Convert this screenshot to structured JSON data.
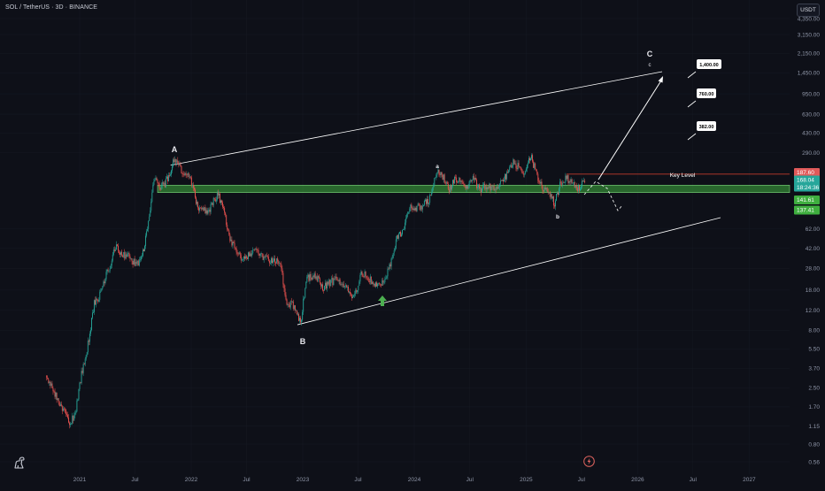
{
  "header": {
    "symbol_title": "SOL / TetherUS · 3D · BINANCE",
    "unit_button": "USDT"
  },
  "colors": {
    "background": "#0e1018",
    "up_candle": "#26a69a",
    "down_candle": "#ef5350",
    "support_zone": "#3fae3f",
    "key_level_line": "#c0392b",
    "channel_line": "#ffffff",
    "current_price_tag": "#26a69a",
    "high_tag": "#e05a5a",
    "zone_tag": "#3fae3f",
    "arrow_up": "#4caf50"
  },
  "chart_data": {
    "type": "candlestick",
    "ylabel": "USDT",
    "y_scale": "log",
    "ylim": [
      0.5,
      5300
    ],
    "y_ticks": [
      "4,350.00",
      "3,150.00",
      "2,150.00",
      "1,450.00",
      "950.00",
      "630.00",
      "430.00",
      "290.00",
      "187.60",
      "168.04",
      "141.61",
      "137.41",
      "62.00",
      "42.00",
      "28.00",
      "18.00",
      "12.00",
      "8.00",
      "5.50",
      "3.70",
      "2.50",
      "1.70",
      "1.15",
      "0.80",
      "0.56"
    ],
    "x_ticks": [
      "2021",
      "Jul",
      "2022",
      "Jul",
      "2023",
      "Jul",
      "2024",
      "Jul",
      "2025",
      "Jul",
      "2026",
      "Jul",
      "2027"
    ],
    "price_series": [
      [
        "2020-09-15",
        3.2
      ],
      [
        "2020-10-05",
        2.6
      ],
      [
        "2020-10-25",
        1.9
      ],
      [
        "2020-11-15",
        1.6
      ],
      [
        "2020-12-01",
        1.2
      ],
      [
        "2020-12-20",
        1.45
      ],
      [
        "2021-01-10",
        3.3
      ],
      [
        "2021-01-30",
        5.8
      ],
      [
        "2021-02-20",
        13.5
      ],
      [
        "2021-03-10",
        16.0
      ],
      [
        "2021-03-25",
        22.0
      ],
      [
        "2021-04-10",
        28.0
      ],
      [
        "2021-05-01",
        44.0
      ],
      [
        "2021-05-20",
        36.0
      ],
      [
        "2021-06-10",
        38.0
      ],
      [
        "2021-06-25",
        32.0
      ],
      [
        "2021-07-15",
        30.0
      ],
      [
        "2021-08-01",
        40.0
      ],
      [
        "2021-08-20",
        75.0
      ],
      [
        "2021-09-05",
        175.0
      ],
      [
        "2021-09-25",
        145.0
      ],
      [
        "2021-10-10",
        155.0
      ],
      [
        "2021-10-30",
        205.0
      ],
      [
        "2021-11-06",
        250.0
      ],
      [
        "2021-11-20",
        235.0
      ],
      [
        "2021-12-05",
        200.0
      ],
      [
        "2021-12-25",
        180.0
      ],
      [
        "2022-01-10",
        150.0
      ],
      [
        "2022-01-25",
        95.0
      ],
      [
        "2022-02-10",
        95.0
      ],
      [
        "2022-03-01",
        88.0
      ],
      [
        "2022-03-30",
        125.0
      ],
      [
        "2022-04-20",
        100.0
      ],
      [
        "2022-05-10",
        50.0
      ],
      [
        "2022-06-01",
        40.0
      ],
      [
        "2022-06-20",
        33.0
      ],
      [
        "2022-07-10",
        36.0
      ],
      [
        "2022-08-01",
        40.0
      ],
      [
        "2022-08-20",
        37.0
      ],
      [
        "2022-09-10",
        33.0
      ],
      [
        "2022-10-01",
        33.0
      ],
      [
        "2022-10-25",
        30.0
      ],
      [
        "2022-11-09",
        14.0
      ],
      [
        "2022-12-01",
        13.5
      ],
      [
        "2022-12-29",
        9.6
      ],
      [
        "2023-01-15",
        22.0
      ],
      [
        "2023-02-01",
        24.0
      ],
      [
        "2023-02-20",
        23.0
      ],
      [
        "2023-03-10",
        19.0
      ],
      [
        "2023-04-01",
        21.0
      ],
      [
        "2023-04-20",
        22.0
      ],
      [
        "2023-05-10",
        20.0
      ],
      [
        "2023-06-01",
        19.0
      ],
      [
        "2023-06-15",
        15.0
      ],
      [
        "2023-07-01",
        18.0
      ],
      [
        "2023-07-15",
        26.0
      ],
      [
        "2023-08-01",
        24.0
      ],
      [
        "2023-08-20",
        21.0
      ],
      [
        "2023-09-10",
        19.0
      ],
      [
        "2023-10-01",
        22.0
      ],
      [
        "2023-10-20",
        32.0
      ],
      [
        "2023-11-10",
        55.0
      ],
      [
        "2023-11-30",
        60.0
      ],
      [
        "2023-12-20",
        95.0
      ],
      [
        "2024-01-10",
        95.0
      ],
      [
        "2024-01-30",
        100.0
      ],
      [
        "2024-02-20",
        110.0
      ],
      [
        "2024-03-10",
        165.0
      ],
      [
        "2024-03-18",
        200.0
      ],
      [
        "2024-04-10",
        175.0
      ],
      [
        "2024-04-25",
        135.0
      ],
      [
        "2024-05-15",
        165.0
      ],
      [
        "2024-06-05",
        170.0
      ],
      [
        "2024-06-25",
        140.0
      ],
      [
        "2024-07-15",
        170.0
      ],
      [
        "2024-08-05",
        135.0
      ],
      [
        "2024-08-25",
        150.0
      ],
      [
        "2024-09-15",
        140.0
      ],
      [
        "2024-10-05",
        150.0
      ],
      [
        "2024-10-25",
        170.0
      ],
      [
        "2024-11-10",
        215.0
      ],
      [
        "2024-11-25",
        240.0
      ],
      [
        "2024-12-10",
        215.0
      ],
      [
        "2024-12-30",
        190.0
      ],
      [
        "2025-01-19",
        270.0
      ],
      [
        "2025-02-05",
        200.0
      ],
      [
        "2025-02-25",
        140.0
      ],
      [
        "2025-03-15",
        130.0
      ],
      [
        "2025-04-07",
        105.0
      ],
      [
        "2025-04-25",
        150.0
      ],
      [
        "2025-05-15",
        175.0
      ],
      [
        "2025-06-05",
        155.0
      ],
      [
        "2025-06-22",
        140.0
      ],
      [
        "2025-07-05",
        150.0
      ],
      [
        "2025-07-12",
        168.04
      ]
    ],
    "wave_labels": [
      {
        "label": "A",
        "date": "2021-11-06",
        "price": 250.0
      },
      {
        "label": "B",
        "date": "2022-12-29",
        "price": 9.6
      },
      {
        "label": "a",
        "date": "2024-03-18",
        "price": 200.0
      },
      {
        "label": "b",
        "date": "2025-04-07",
        "price": 105.0
      },
      {
        "label": "C",
        "date": "2026-06-01",
        "price": 1900.0
      },
      {
        "label": "c",
        "date": "2026-06-01",
        "price": 1650.0
      }
    ],
    "price_tags": [
      {
        "value": "187.60",
        "kind": "high"
      },
      {
        "value": "168.04",
        "kind": "current",
        "countdown": "18:24:36"
      },
      {
        "value": "141.61",
        "kind": "zone"
      },
      {
        "value": "137.41",
        "kind": "zone"
      }
    ],
    "support_zone": [
      137.41,
      141.61
    ],
    "key_level": {
      "label": "Key Level",
      "value": 187.6
    },
    "targets": [
      "1,400.00",
      "760.00",
      "382.00"
    ]
  }
}
